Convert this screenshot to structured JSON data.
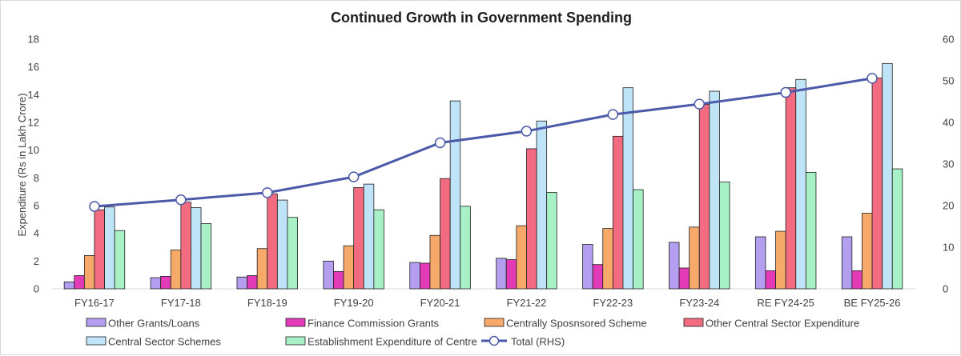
{
  "chart_data": {
    "type": "bar",
    "title": "Continued Growth in Government Spending",
    "ylabel": "Expenditure  (Rs  in Lakh Crore)",
    "y2label": "",
    "ylim": [
      0,
      18
    ],
    "y2lim": [
      0,
      60
    ],
    "yticks": [
      "0",
      "2",
      "4",
      "6",
      "8",
      "10",
      "12",
      "14",
      "16",
      "18"
    ],
    "y2ticks": [
      "0",
      "10",
      "20",
      "30",
      "40",
      "50",
      "60"
    ],
    "grid": false,
    "legend_position": "bottom",
    "categories": [
      "FY16-17",
      "FY17-18",
      "FY18-19",
      "FY19-20",
      "FY20-21",
      "FY21-22",
      "FY22-23",
      "FY23-24",
      "RE FY24-25",
      "BE FY25-26"
    ],
    "series": [
      {
        "name": "Other Grants/Loans",
        "type": "bar",
        "color": "#b39ef0",
        "values": [
          0.5,
          0.8,
          0.85,
          2.0,
          1.9,
          2.2,
          3.2,
          3.35,
          3.75,
          3.75
        ]
      },
      {
        "name": "Finance Commission Grants",
        "type": "bar",
        "color": "#e33bb8",
        "values": [
          0.95,
          0.9,
          0.95,
          1.25,
          1.85,
          2.1,
          1.75,
          1.5,
          1.3,
          1.3
        ]
      },
      {
        "name": "Centrally Sposnsored Scheme",
        "type": "bar",
        "color": "#f7a96a",
        "values": [
          2.4,
          2.8,
          2.9,
          3.1,
          3.85,
          4.55,
          4.35,
          4.45,
          4.15,
          5.45
        ]
      },
      {
        "name": "Other Central Sector Expenditure",
        "type": "bar",
        "color": "#f26b80",
        "values": [
          5.7,
          6.25,
          6.85,
          7.3,
          7.95,
          10.1,
          11.0,
          13.3,
          14.5,
          15.2
        ]
      },
      {
        "name": "Central Sector Schemes",
        "type": "bar",
        "color": "#bfe3f7",
        "values": [
          5.9,
          5.85,
          6.4,
          7.55,
          13.55,
          12.1,
          14.5,
          14.25,
          15.1,
          16.25
        ]
      },
      {
        "name": "Establishment Expenditure of Centre",
        "type": "bar",
        "color": "#a8f0c6",
        "values": [
          4.2,
          4.7,
          5.15,
          5.7,
          5.95,
          6.95,
          7.15,
          7.7,
          8.4,
          8.65
        ]
      },
      {
        "name": "Total (RHS)",
        "type": "line",
        "axis": "right",
        "color": "#4a5aa8",
        "values": [
          19.8,
          21.4,
          23.1,
          26.9,
          35.1,
          37.9,
          41.9,
          44.4,
          47.2,
          50.6
        ]
      }
    ]
  }
}
